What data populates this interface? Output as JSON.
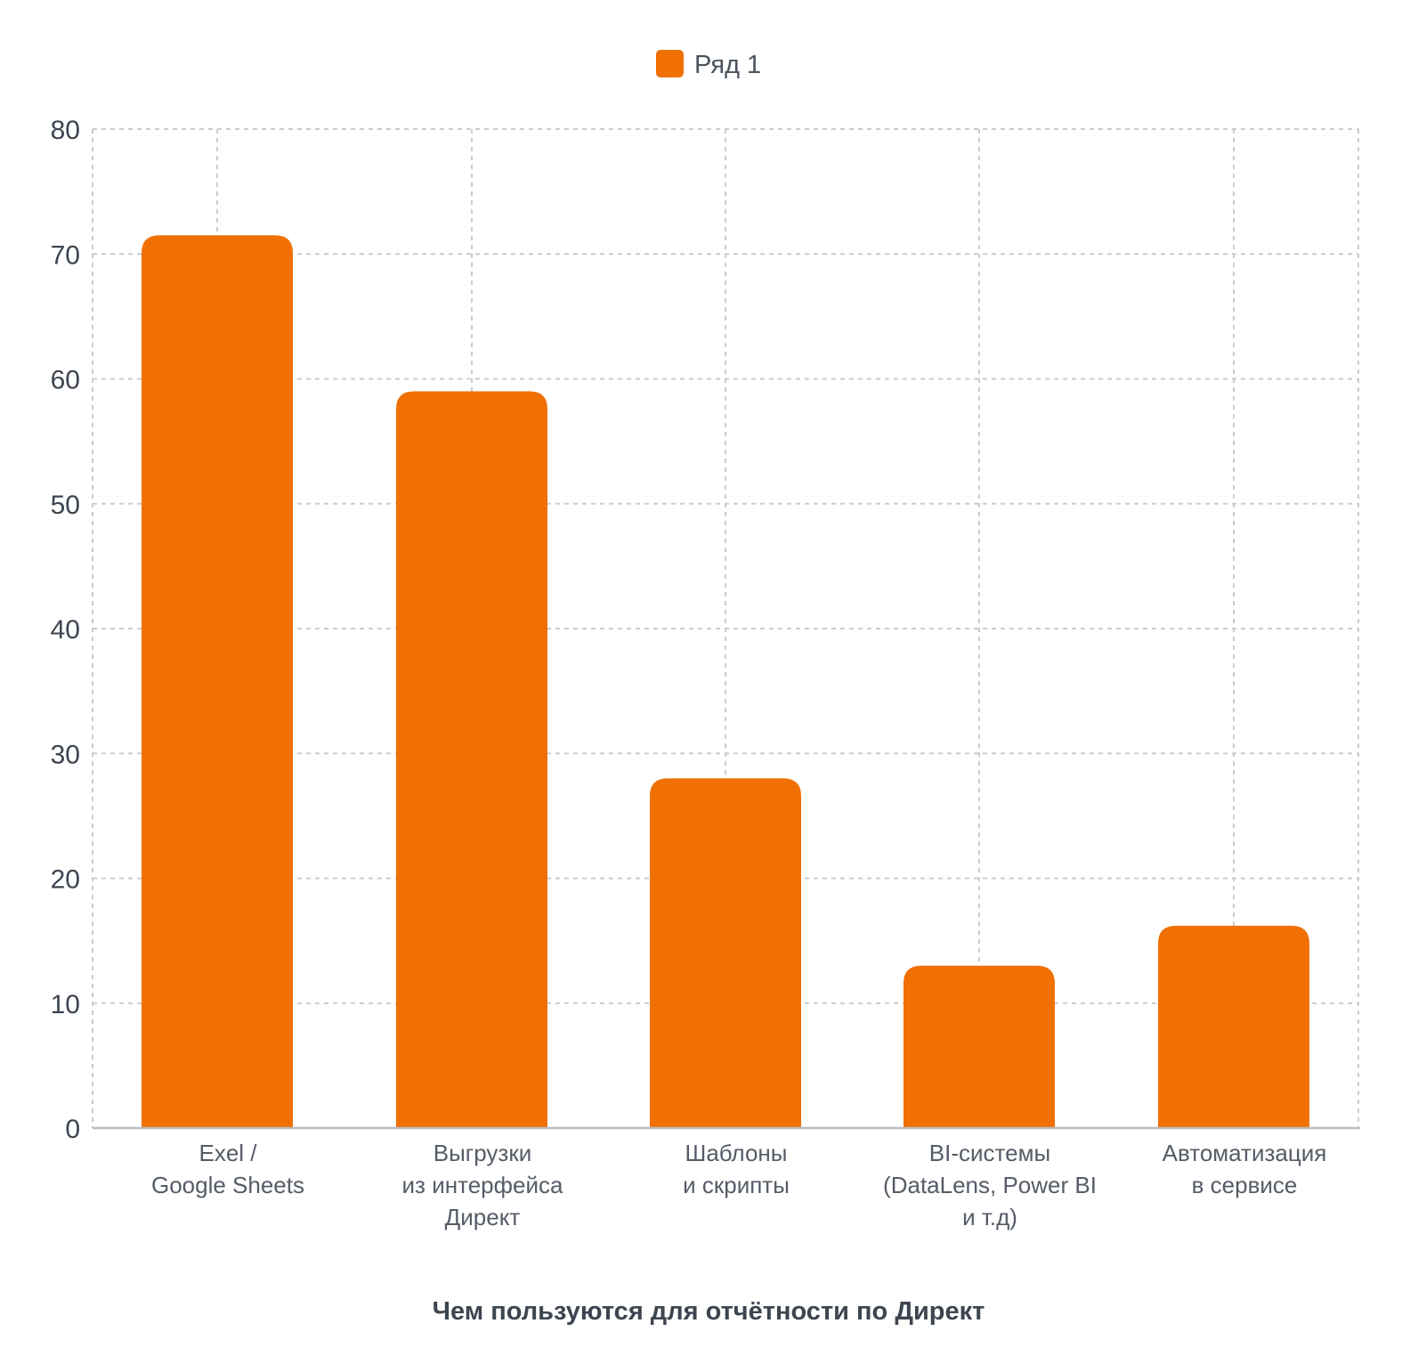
{
  "chart_data": {
    "type": "bar",
    "categories": [
      [
        "Exel /",
        "Google Sheets"
      ],
      [
        "Выгрузки",
        "из интерфейса",
        "Директ"
      ],
      [
        "Шаблоны",
        "и скрипты"
      ],
      [
        "BI-системы",
        "(DataLens, Power BI",
        "и т.д)"
      ],
      [
        "Автоматизация",
        "в сервисе"
      ]
    ],
    "series": [
      {
        "name": "Ряд 1",
        "color": "#f07004",
        "values": [
          71.5,
          59,
          28,
          13,
          16.2
        ]
      }
    ],
    "xlabel": "Чем пользуются для отчётности по Директ",
    "ylabel": "",
    "ylim": [
      0,
      80
    ],
    "yticks": [
      0,
      10,
      20,
      30,
      40,
      50,
      60,
      70,
      80
    ],
    "grid": true,
    "legend_position": "top-center"
  }
}
